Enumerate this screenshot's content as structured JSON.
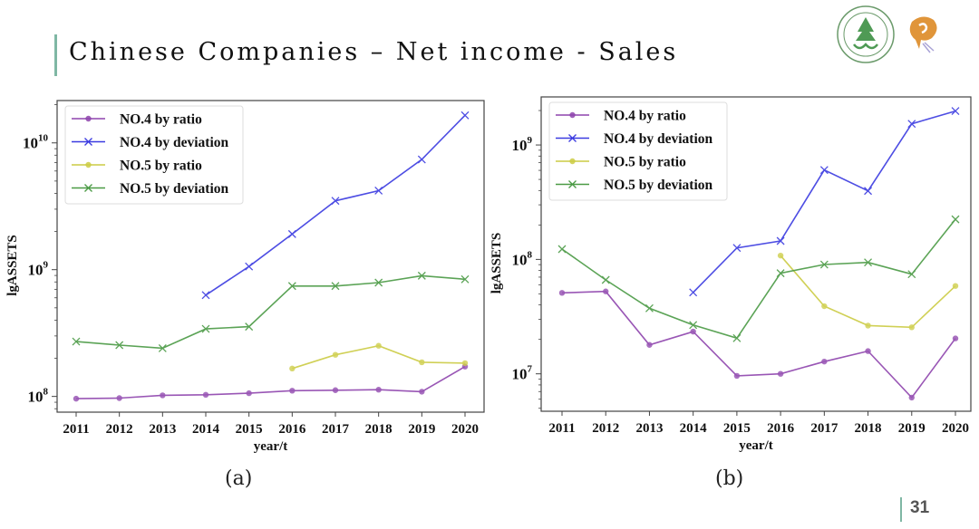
{
  "slide": {
    "title": "Chinese Companies  –  Net income - Sales",
    "page_number": "31",
    "accent_color": "#7fb7a4"
  },
  "logos": [
    {
      "name": "university-seal-logo",
      "color": "#4a8a4a"
    },
    {
      "name": "orange-mascot-logo",
      "color": "#e0953a"
    }
  ],
  "captions": [
    "(a)",
    "(b)"
  ],
  "chart_data": [
    {
      "id": "a",
      "type": "line",
      "yscale": "log",
      "title": "",
      "xlabel": "year/t",
      "ylabel": "lgASSETS",
      "x": [
        2011,
        2012,
        2013,
        2014,
        2015,
        2016,
        2017,
        2018,
        2019,
        2020
      ],
      "ylim_log10": [
        7.876,
        10.334
      ],
      "yticks": [
        {
          "exp": 8,
          "label": "10",
          "sup": "8"
        },
        {
          "exp": 9,
          "label": "10",
          "sup": "9"
        },
        {
          "exp": 10,
          "label": "10",
          "sup": "10"
        }
      ],
      "legend": "upper-left",
      "series": [
        {
          "name": "NO.4 by ratio",
          "color": "#8e44ad",
          "marker": "dot",
          "values": [
            96000000.0,
            97000000.0,
            102000000.0,
            103000000.0,
            106000000.0,
            111000000.0,
            112000000.0,
            113000000.0,
            109000000.0,
            172000000.0
          ]
        },
        {
          "name": "NO.4 by deviation",
          "color": "#3a3ae0",
          "marker": "x",
          "values": [
            null,
            null,
            null,
            630000000.0,
            1060000000.0,
            1910000000.0,
            3490000000.0,
            4200000000.0,
            7400000000.0,
            16500000000.0
          ]
        },
        {
          "name": "NO.5 by ratio",
          "color": "#cccc44",
          "marker": "dot",
          "values": [
            null,
            null,
            null,
            null,
            null,
            166000000.0,
            213000000.0,
            251000000.0,
            186000000.0,
            183000000.0
          ]
        },
        {
          "name": "NO.5 by deviation",
          "color": "#4a9a44",
          "marker": "x",
          "values": [
            271000000.0,
            254000000.0,
            240000000.0,
            341000000.0,
            355000000.0,
            743000000.0,
            743000000.0,
            790000000.0,
            896000000.0,
            840000000.0
          ]
        }
      ]
    },
    {
      "id": "b",
      "type": "line",
      "yscale": "log",
      "title": "",
      "xlabel": "year/t",
      "ylabel": "lgASSETS",
      "x": [
        2011,
        2012,
        2013,
        2014,
        2015,
        2016,
        2017,
        2018,
        2019,
        2020
      ],
      "ylim_log10": [
        6.673,
        9.42
      ],
      "yticks": [
        {
          "exp": 7,
          "label": "10",
          "sup": "7"
        },
        {
          "exp": 8,
          "label": "10",
          "sup": "8"
        },
        {
          "exp": 9,
          "label": "10",
          "sup": "9"
        }
      ],
      "legend": "upper-left",
      "series": [
        {
          "name": "NO.4 by ratio",
          "color": "#8e44ad",
          "marker": "dot",
          "values": [
            51000000.0,
            52500000.0,
            17900000.0,
            23400000.0,
            9600000.0,
            10000000.0,
            12800000.0,
            15800000.0,
            6200000.0,
            20400000.0
          ]
        },
        {
          "name": "NO.4 by deviation",
          "color": "#3a3ae0",
          "marker": "x",
          "values": [
            null,
            null,
            null,
            51500000.0,
            126000000.0,
            145000000.0,
            604000000.0,
            397000000.0,
            1530000000.0,
            1980000000.0
          ]
        },
        {
          "name": "NO.5 by ratio",
          "color": "#cccc44",
          "marker": "dot",
          "values": [
            null,
            null,
            null,
            null,
            null,
            108000000.0,
            39000000.0,
            26400000.0,
            25500000.0,
            58600000.0
          ]
        },
        {
          "name": "NO.5 by deviation",
          "color": "#4a9a44",
          "marker": "x",
          "values": [
            123000000.0,
            66200000.0,
            37400000.0,
            26700000.0,
            20500000.0,
            75700000.0,
            90200000.0,
            94100000.0,
            74300000.0,
            224000000.0
          ]
        }
      ]
    }
  ]
}
